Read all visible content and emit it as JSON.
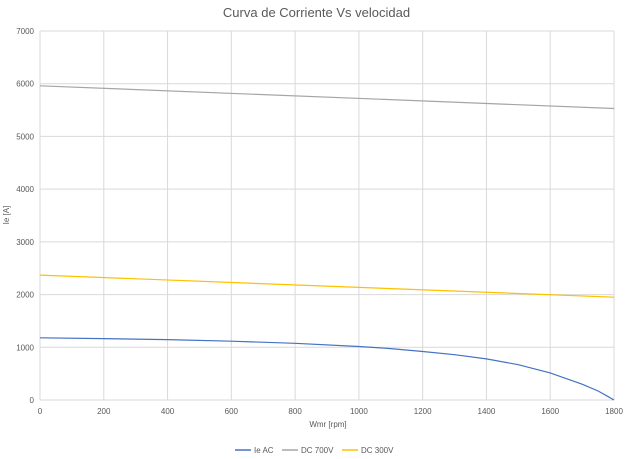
{
  "chart_data": {
    "type": "line",
    "title": "Curva de Corriente Vs velocidad",
    "xlabel": "Wmr [rpm]",
    "ylabel": "Ie [A]",
    "xlim": [
      0,
      1800
    ],
    "ylim": [
      0,
      7000
    ],
    "xticks": [
      "0",
      "200",
      "400",
      "600",
      "800",
      "1000",
      "1200",
      "1400",
      "1600",
      "1800"
    ],
    "yticks": [
      "0",
      "1000",
      "2000",
      "3000",
      "4000",
      "5000",
      "6000",
      "7000"
    ],
    "grid": true,
    "legend_position": "bottom",
    "series": [
      {
        "name": "Ie AC",
        "color": "#4472c4",
        "x": [
          0,
          200,
          400,
          600,
          800,
          1000,
          1100,
          1200,
          1300,
          1400,
          1500,
          1600,
          1700,
          1750,
          1780,
          1800
        ],
        "y": [
          1180,
          1165,
          1145,
          1115,
          1075,
          1015,
          975,
          920,
          860,
          780,
          670,
          515,
          300,
          170,
          70,
          0
        ]
      },
      {
        "name": "DC 700V",
        "color": "#a5a5a5",
        "x": [
          0,
          1800
        ],
        "y": [
          5960,
          5530
        ]
      },
      {
        "name": "DC 300V",
        "color": "#ffc000",
        "x": [
          0,
          1800
        ],
        "y": [
          2370,
          1950
        ]
      }
    ]
  }
}
